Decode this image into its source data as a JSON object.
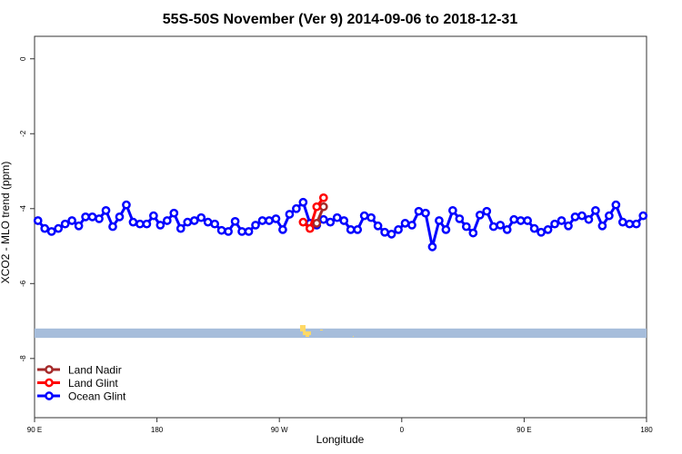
{
  "chart_data": {
    "type": "line",
    "title": "55S-50S November (Ver 9)   2014-09-06 to 2018-12-31",
    "xlabel": "Longitude",
    "ylabel": "XCO2 - MLO trend (ppm)",
    "xlim": [
      90,
      540
    ],
    "ylim": [
      -9.58,
      0.6
    ],
    "x_ticks": [
      {
        "v": 90,
        "label": "90 E"
      },
      {
        "v": 180,
        "label": "180"
      },
      {
        "v": 270,
        "label": "90 W"
      },
      {
        "v": 360,
        "label": "0"
      },
      {
        "v": 450,
        "label": "90 E"
      },
      {
        "v": 540,
        "label": "180"
      }
    ],
    "y_ticks": [
      {
        "v": 0,
        "label": "0"
      },
      {
        "v": -2,
        "label": "-2"
      },
      {
        "v": -4,
        "label": "-4"
      },
      {
        "v": -6,
        "label": "-6"
      },
      {
        "v": -8,
        "label": "-8"
      }
    ],
    "legend_position": "bottom-left",
    "land_band": {
      "y_range": [
        -7.45,
        -7.2
      ],
      "ocean_color": "#a6bddb",
      "land_color": "#ffd966"
    },
    "series": [
      {
        "name": "Land Nadir",
        "color": "#a52a2a",
        "x_start": 297.5,
        "x_step": 5,
        "values": [
          -4.39,
          -3.95
        ]
      },
      {
        "name": "Land Glint",
        "color": "#ff0000",
        "x_start": 287.5,
        "x_step": 5,
        "values": [
          -4.36,
          -4.53,
          -3.95,
          -3.71
        ]
      },
      {
        "name": "Ocean Glint",
        "color": "#0000ff",
        "x_start": 92.5,
        "x_step": 5,
        "values": [
          -4.32,
          -4.53,
          -4.61,
          -4.53,
          -4.41,
          -4.32,
          -4.46,
          -4.22,
          -4.22,
          -4.27,
          -4.05,
          -4.48,
          -4.22,
          -3.9,
          -4.36,
          -4.41,
          -4.41,
          -4.19,
          -4.44,
          -4.32,
          -4.12,
          -4.53,
          -4.36,
          -4.32,
          -4.24,
          -4.36,
          -4.41,
          -4.58,
          -4.61,
          -4.34,
          -4.61,
          -4.61,
          -4.44,
          -4.32,
          -4.32,
          -4.27,
          -4.56,
          -4.15,
          -4.0,
          -3.83,
          -4.39,
          -4.44,
          -4.29,
          -4.36,
          -4.24,
          -4.32,
          -4.56,
          -4.56,
          -4.19,
          -4.24,
          -4.46,
          -4.63,
          -4.68,
          -4.56,
          -4.39,
          -4.44,
          -4.07,
          -4.12,
          -5.02,
          -4.32,
          -4.56,
          -4.05,
          -4.27,
          -4.48,
          -4.65,
          -4.17,
          -4.07,
          -4.48,
          -4.44,
          -4.56,
          -4.29,
          -4.32,
          -4.32,
          -4.53,
          -4.63,
          -4.56,
          -4.41,
          -4.32,
          -4.46,
          -4.22,
          -4.19,
          -4.29,
          -4.05,
          -4.46,
          -4.19,
          -3.9,
          -4.36,
          -4.41,
          -4.41,
          -4.19
        ]
      }
    ]
  }
}
